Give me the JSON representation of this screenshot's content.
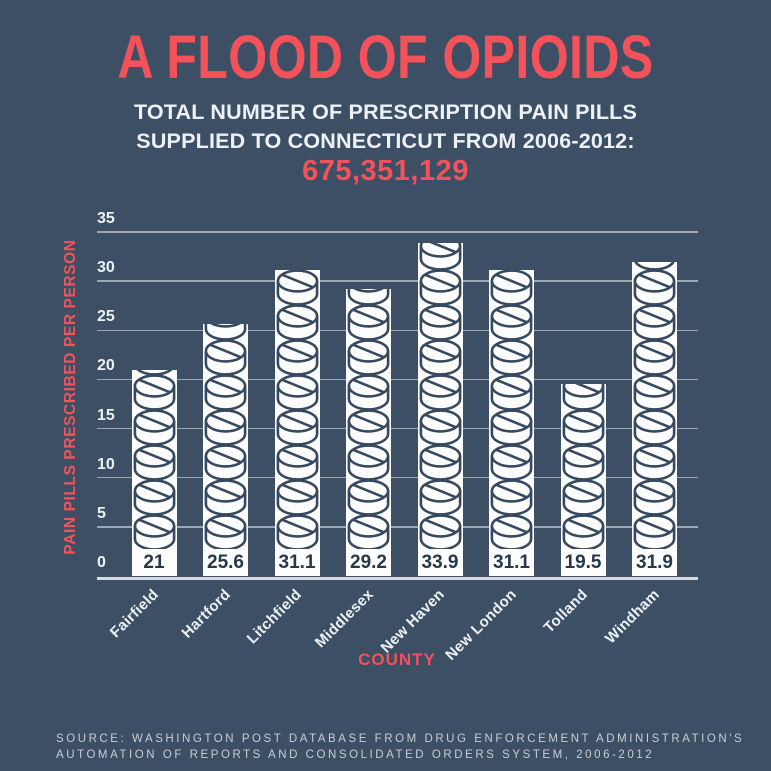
{
  "colors": {
    "background": "#3C4F65",
    "accent_red": "#F4525A",
    "text_white": "#EDF1F5",
    "pill_fill": "#FDFDFE",
    "pill_outline": "#36495F",
    "value_text": "#273848",
    "gridline": "#ADB7C1",
    "axis_line": "#D5DBE0",
    "source_text": "#C5CED6"
  },
  "header": {
    "title": "A FLOOD OF OPIOIDS",
    "subtitle_line1": "TOTAL NUMBER OF PRESCRIPTION PAIN PILLS",
    "subtitle_line2": "SUPPLIED TO CONNECTICUT FROM 2006-2012:",
    "total_number": "675,351,129"
  },
  "chart_data": {
    "type": "bar",
    "title": "A FLOOD OF OPIOIDS",
    "categories": [
      "Fairfield",
      "Hartford",
      "Litchfield",
      "Middlesex",
      "New Haven",
      "New London",
      "Tolland",
      "Windham"
    ],
    "values": [
      21,
      25.6,
      31.1,
      29.2,
      33.9,
      31.1,
      19.5,
      31.9
    ],
    "value_labels": [
      "21",
      "25.6",
      "31.1",
      "29.2",
      "33.9",
      "31.1",
      "19.5",
      "31.9"
    ],
    "xlabel": "COUNTY",
    "ylabel": "PAIN PILLS PRESCRIBED PER PERSON",
    "ylim": [
      0,
      35
    ],
    "yticks": [
      0,
      5,
      10,
      15,
      20,
      25,
      30,
      35
    ],
    "grid": true,
    "legend": false,
    "bar_style": "stacked-pill-icons"
  },
  "footer": {
    "source_line1": "SOURCE: WASHINGTON POST DATABASE FROM DRUG ENFORCEMENT ADMINISTRATION'S",
    "source_line2": "AUTOMATION OF REPORTS AND CONSOLIDATED ORDERS SYSTEM, 2006-2012"
  }
}
